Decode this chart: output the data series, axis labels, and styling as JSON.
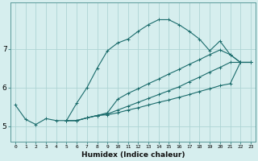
{
  "xlabel": "Humidex (Indice chaleur)",
  "ylabel": "",
  "bg_color": "#d6eeee",
  "grid_color": "#aed4d4",
  "line_color": "#1a6b6b",
  "xlim": [
    -0.5,
    23.5
  ],
  "ylim": [
    4.6,
    8.2
  ],
  "yticks": [
    5,
    6,
    7
  ],
  "xticks": [
    0,
    1,
    2,
    3,
    4,
    5,
    6,
    7,
    8,
    9,
    10,
    11,
    12,
    13,
    14,
    15,
    16,
    17,
    18,
    19,
    20,
    21,
    22,
    23
  ],
  "lines": [
    {
      "x": [
        0,
        1,
        2,
        3,
        4,
        5,
        6,
        7,
        8,
        9,
        10,
        11,
        12,
        13,
        14,
        15,
        16,
        17,
        18,
        19,
        20,
        21,
        22,
        23
      ],
      "y": [
        5.55,
        5.18,
        5.05,
        5.2,
        5.15,
        5.15,
        5.6,
        6.0,
        6.5,
        6.95,
        7.15,
        7.25,
        7.45,
        7.62,
        7.75,
        7.75,
        7.62,
        7.45,
        7.25,
        6.95,
        7.2,
        6.85,
        6.65,
        6.65
      ]
    },
    {
      "x": [
        5,
        6,
        7,
        8,
        9,
        10,
        11,
        12,
        13,
        14,
        15,
        16,
        17,
        18,
        19,
        20,
        21,
        22,
        23
      ],
      "y": [
        5.15,
        5.15,
        5.22,
        5.28,
        5.35,
        5.7,
        5.85,
        5.97,
        6.1,
        6.22,
        6.35,
        6.47,
        6.6,
        6.72,
        6.85,
        6.97,
        6.85,
        6.65,
        6.65
      ]
    },
    {
      "x": [
        5,
        6,
        7,
        8,
        9,
        10,
        11,
        12,
        13,
        14,
        15,
        16,
        17,
        18,
        19,
        20,
        21,
        22,
        23
      ],
      "y": [
        5.15,
        5.15,
        5.22,
        5.28,
        5.32,
        5.42,
        5.52,
        5.62,
        5.72,
        5.82,
        5.92,
        6.02,
        6.15,
        6.27,
        6.4,
        6.52,
        6.65,
        6.65,
        6.65
      ]
    },
    {
      "x": [
        5,
        6,
        7,
        8,
        9,
        10,
        11,
        12,
        13,
        14,
        15,
        16,
        17,
        18,
        19,
        20,
        21,
        22,
        23
      ],
      "y": [
        5.15,
        5.15,
        5.22,
        5.28,
        5.3,
        5.35,
        5.42,
        5.48,
        5.55,
        5.62,
        5.68,
        5.75,
        5.82,
        5.9,
        5.97,
        6.05,
        6.1,
        6.65,
        6.65
      ]
    }
  ]
}
